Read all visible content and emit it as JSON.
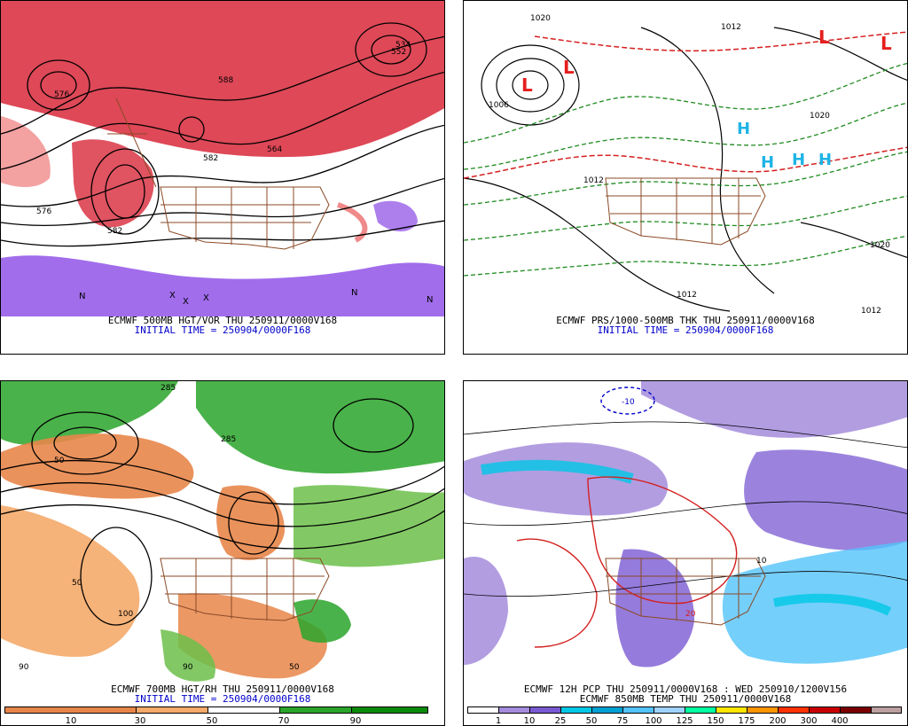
{
  "panels": [
    {
      "id": "p1",
      "caption_line1": "ECMWF 500MB HGT/VOR THU 250911/0000V168",
      "caption_line2": "INITIAL TIME = 250904/0000F168",
      "contour_labels": [
        "576",
        "582",
        "588",
        "564",
        "552",
        "534",
        "576",
        "582"
      ],
      "markers": [
        "X",
        "N"
      ]
    },
    {
      "id": "p2",
      "caption_line1": "ECMWF PRS/1000-500MB THK THU 250911/0000V168",
      "caption_line2": "INITIAL TIME = 250904/0000F168",
      "contour_labels": [
        "1020",
        "1012",
        "1006",
        "1020",
        "1012",
        "1012",
        "1020",
        "1012"
      ],
      "pressure_centers": [
        "L",
        "L",
        "L",
        "L",
        "H",
        "H",
        "H",
        "H"
      ]
    },
    {
      "id": "p3",
      "caption_line1": "ECMWF 700MB HGT/RH THU 250911/0000V168",
      "caption_line2": "INITIAL TIME = 250904/0000F168",
      "contour_labels": [
        "285",
        "285",
        "50",
        "50",
        "90",
        "50",
        "100",
        "90"
      ],
      "colorbar": {
        "colors": [
          "#e8864a",
          "#f4aa6a",
          "#ffffff",
          "#ffffff",
          "#6cc04a",
          "#2aa42a",
          "#0a8a0a"
        ],
        "labels": [
          "10",
          "30",
          "50",
          "70",
          "90"
        ]
      }
    },
    {
      "id": "p4",
      "caption_line1": "ECMWF 12H PCP THU 250911/0000V168 : WED 250910/1200V156",
      "caption_line2": "ECMWF 850MB TEMP THU 250911/0000V168",
      "contour_labels": [
        "-10",
        "20",
        "10"
      ],
      "colorbar": {
        "colors": [
          "#ffffff",
          "#a58cdc",
          "#7a5ad2",
          "#00c8e6",
          "#00a0d2",
          "#52c3fa",
          "#a0d2ff",
          "#00ffa0",
          "#ffe600",
          "#ff9600",
          "#ff3200",
          "#c80000",
          "#7a0000",
          "#bca0a0"
        ],
        "labels": [
          "1",
          "10",
          "25",
          "50",
          "75",
          "100",
          "125",
          "150",
          "175",
          "200",
          "300",
          "400"
        ]
      }
    }
  ],
  "colors": {
    "vorticity_red": "#d8283a",
    "vorticity_pink": "#f08a8a",
    "vorticity_purple": "#8a48e6",
    "borders_brown": "#8b4a26",
    "thickness_green": "#1e8a1e",
    "thickness_red": "#d42020",
    "low_label": "#e61e1e",
    "high_label": "#1eb4e6"
  }
}
